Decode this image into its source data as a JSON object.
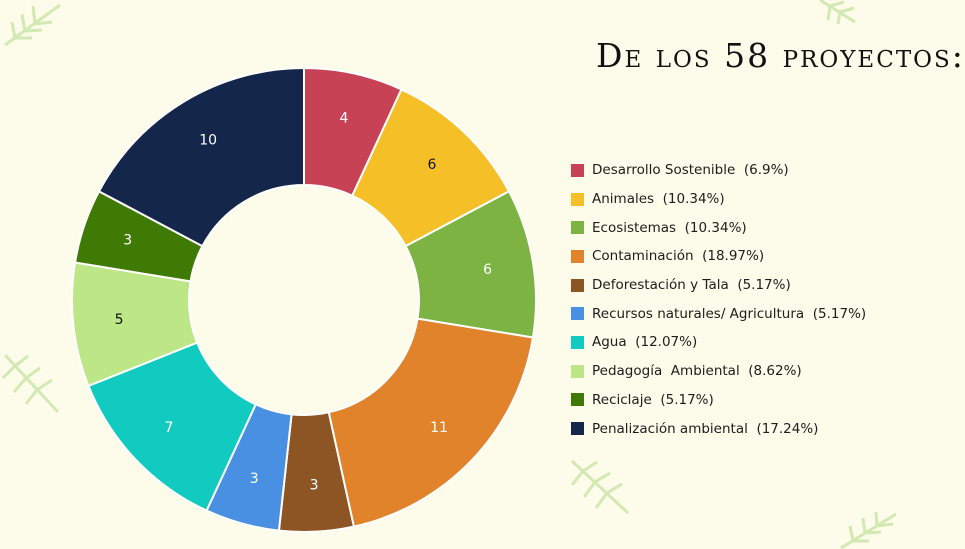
{
  "title": "De los 58 proyectos:",
  "chart_data": {
    "type": "pie",
    "donut": true,
    "categories": [
      "Desarrollo Sostenible",
      "Animales",
      "Ecosistemas",
      "Contaminación",
      "Deforestación y Tala",
      "Recursos naturales/ Agricultura",
      "Agua",
      "Pedagogía  Ambiental",
      "Reciclaje",
      "Penalización ambiental"
    ],
    "values": [
      4,
      6,
      6,
      11,
      3,
      3,
      7,
      5,
      3,
      10
    ],
    "percent_labels": [
      "(6.9%)",
      "(10.34%)",
      "(10.34%)",
      "(18.97%)",
      "(5.17%)",
      "(5.17%)",
      "(12.07%)",
      "(8.62%)",
      "(5.17%)",
      "(17.24%)"
    ],
    "colors": [
      "#c84256",
      "#f5bf28",
      "#7cb342",
      "#e0832a",
      "#8d5523",
      "#4a90e2",
      "#12cbc0",
      "#bde687",
      "#3f7a05",
      "#14264a"
    ],
    "label_colors": [
      "#ffffff",
      "#111111",
      "#ffffff",
      "#ffffff",
      "#ffffff",
      "#ffffff",
      "#ffffff",
      "#111111",
      "#ffffff",
      "#ffffff"
    ],
    "legend_position": "right"
  }
}
